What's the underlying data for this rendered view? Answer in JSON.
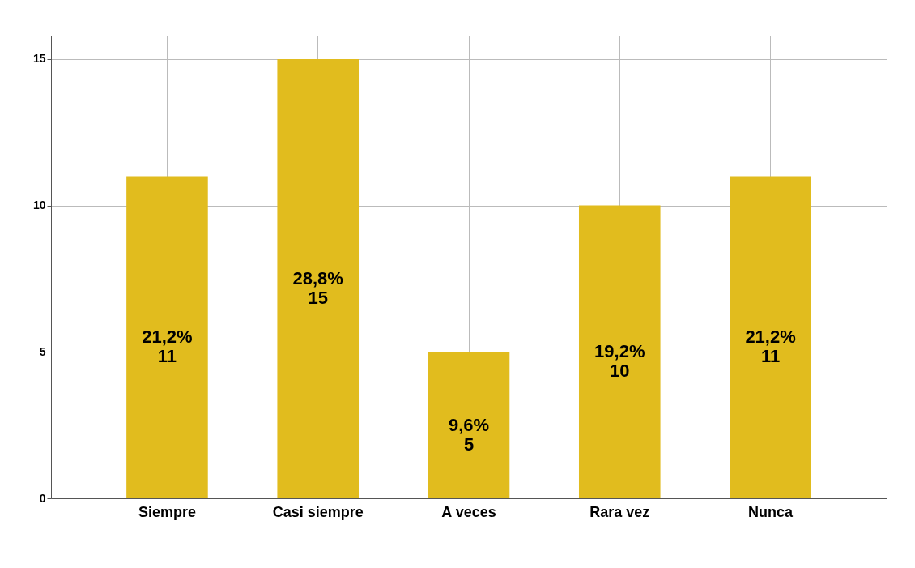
{
  "chart_data": {
    "type": "bar",
    "categories": [
      "Siempre",
      "Casi siempre",
      "A veces",
      "Rara vez",
      "Nunca"
    ],
    "values": [
      11,
      15,
      5,
      10,
      11
    ],
    "value_labels": [
      "21,2%\n11",
      "28,8%\n15",
      "9,6%\n5",
      "19,2%\n10",
      "21,2%\n11"
    ],
    "color": "#e1bc1e",
    "ylim": [
      0,
      15.8
    ],
    "yticks": [
      0,
      5,
      10,
      15
    ],
    "grid": true
  }
}
